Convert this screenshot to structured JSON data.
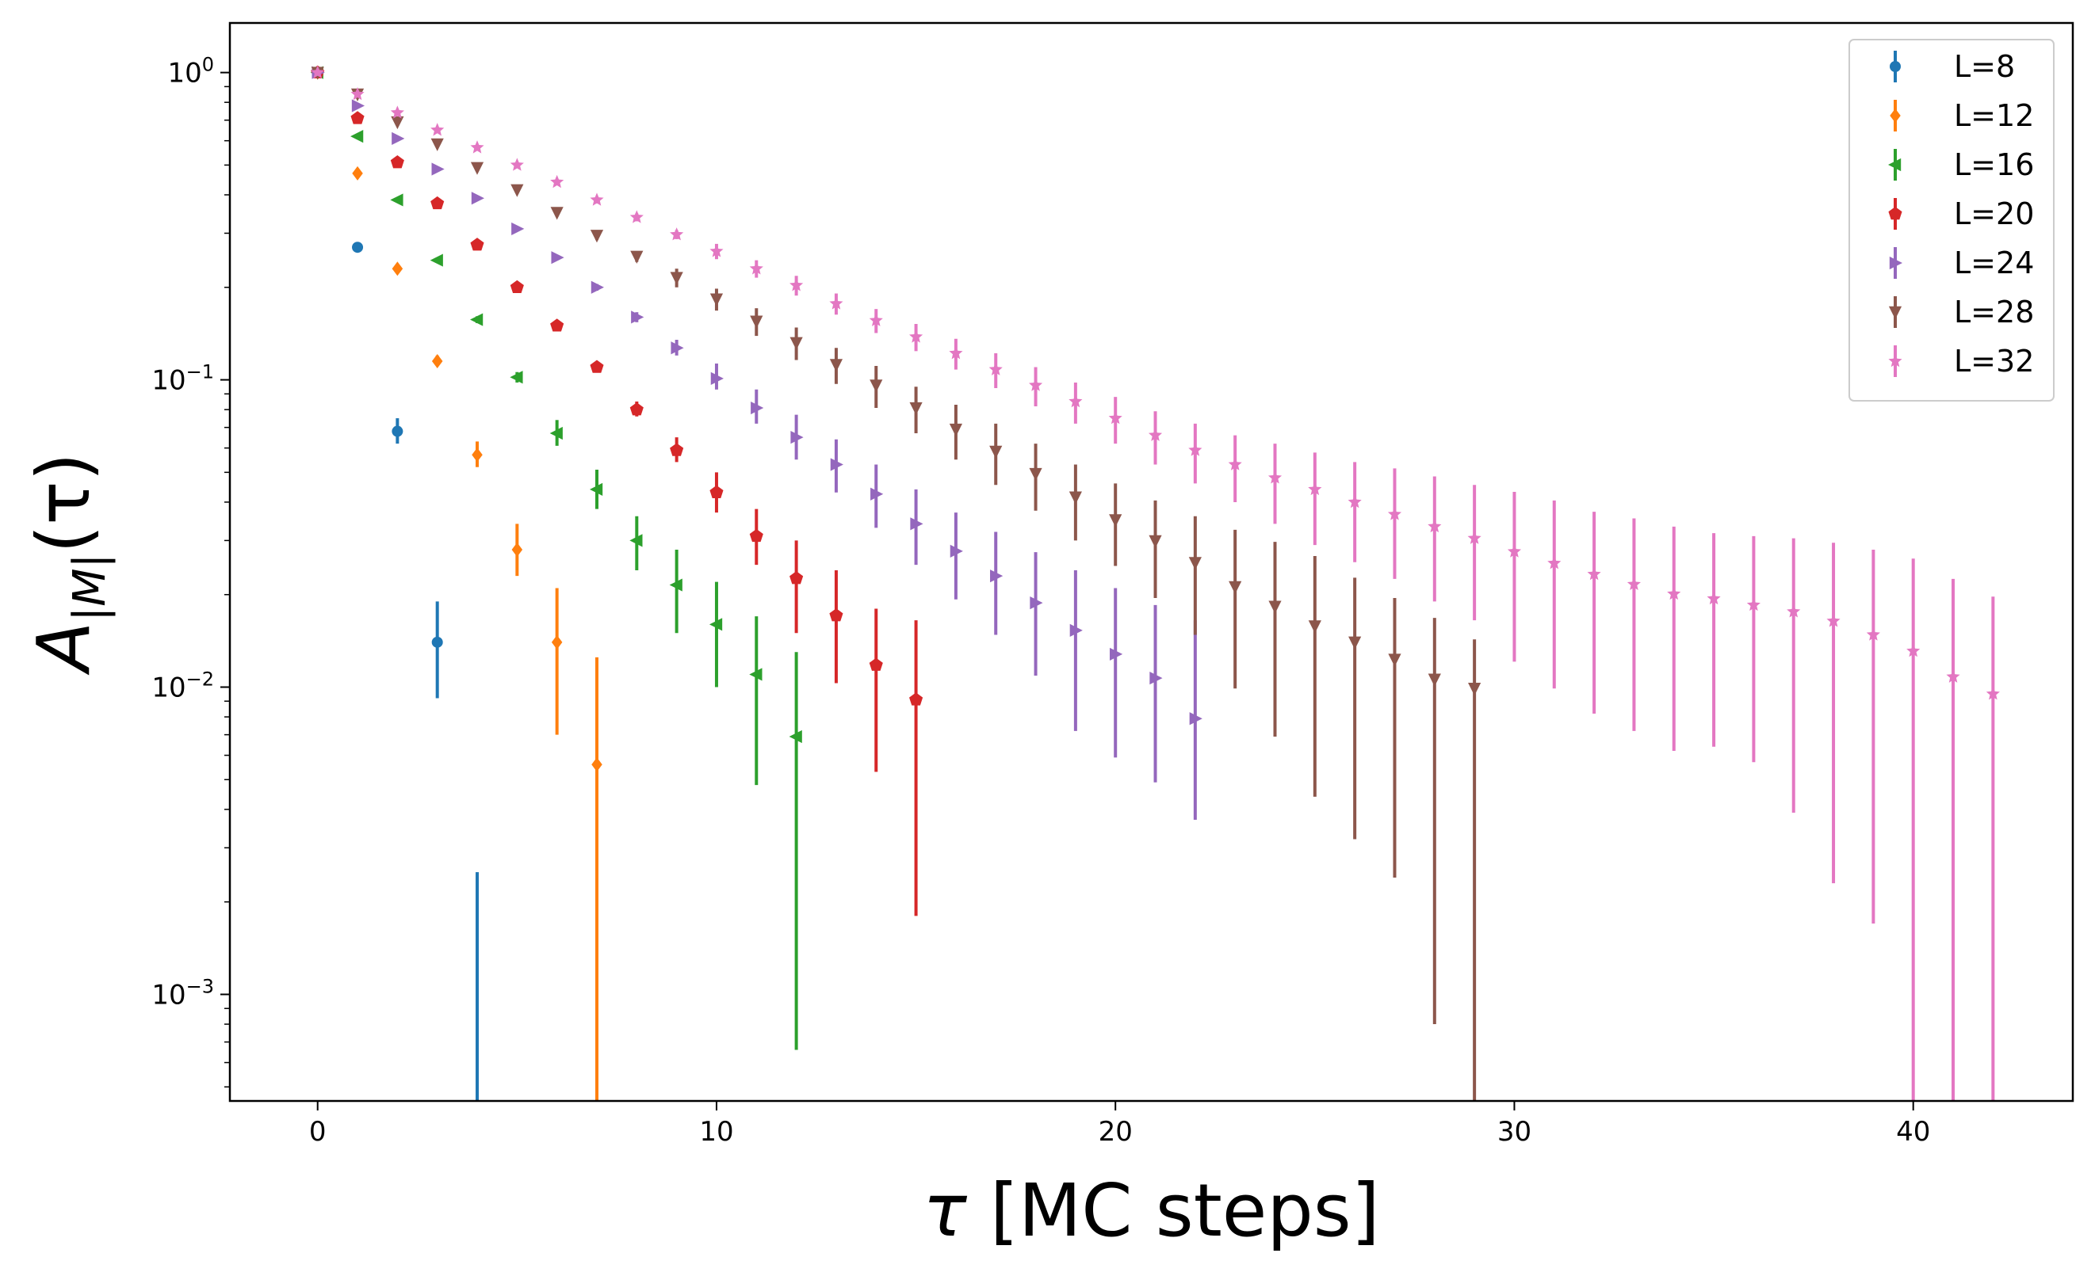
{
  "chart_data": {
    "type": "scatter",
    "title": "",
    "xlabel_parts": {
      "symbol": "τ",
      "unit": " [MC steps]"
    },
    "ylabel_parts": {
      "base": "A",
      "sub": "|M|",
      "arg": "(τ)"
    },
    "xlim": [
      -2.2,
      44
    ],
    "ylim": [
      0.00045,
      1.45
    ],
    "yscale": "log",
    "xticks": [
      0,
      10,
      20,
      30,
      40
    ],
    "xtick_labels": [
      "0",
      "10",
      "20",
      "30",
      "40"
    ],
    "yticks": [
      1,
      0.1,
      0.01,
      0.001
    ],
    "ytick_labels": [
      {
        "base": "10",
        "exp": "0"
      },
      {
        "base": "10",
        "exp": "−1"
      },
      {
        "base": "10",
        "exp": "−2"
      },
      {
        "base": "10",
        "exp": "−3"
      }
    ],
    "grid": false,
    "legend_position": "top-right",
    "series": [
      {
        "name": "L=8",
        "color": "#1f77b4",
        "marker": "circle",
        "x": [
          0,
          1,
          2,
          3,
          4
        ],
        "y": [
          1.0,
          0.27,
          0.068,
          0.014,
          null
        ],
        "yerr_low": [
          1.0,
          0.27,
          0.062,
          0.0092,
          0.0001
        ],
        "yerr_high": [
          1.0,
          0.27,
          0.075,
          0.019,
          0.0025
        ]
      },
      {
        "name": "L=12",
        "color": "#ff7f0e",
        "marker": "diamond",
        "x": [
          0,
          1,
          2,
          3,
          4,
          5,
          6,
          7
        ],
        "y": [
          1.0,
          0.47,
          0.23,
          0.115,
          0.057,
          0.028,
          0.014,
          0.0056
        ],
        "yerr_low": [
          1.0,
          0.46,
          0.225,
          0.111,
          0.052,
          0.023,
          0.007,
          0.0001
        ],
        "yerr_high": [
          1.0,
          0.48,
          0.237,
          0.12,
          0.063,
          0.034,
          0.021,
          0.0125
        ]
      },
      {
        "name": "L=16",
        "color": "#2ca02c",
        "marker": "triangle-left",
        "x": [
          0,
          1,
          2,
          3,
          4,
          5,
          6,
          7,
          8,
          9,
          10,
          11,
          12
        ],
        "y": [
          1.0,
          0.62,
          0.385,
          0.245,
          0.157,
          0.102,
          0.067,
          0.044,
          0.03,
          0.0215,
          0.016,
          0.011,
          0.0069
        ],
        "yerr_low": [
          1.0,
          0.61,
          0.38,
          0.241,
          0.153,
          0.098,
          0.061,
          0.038,
          0.024,
          0.015,
          0.01,
          0.0048,
          0.00066
        ],
        "yerr_high": [
          1.0,
          0.63,
          0.39,
          0.25,
          0.161,
          0.106,
          0.074,
          0.051,
          0.036,
          0.028,
          0.022,
          0.017,
          0.013
        ]
      },
      {
        "name": "L=20",
        "color": "#d62728",
        "marker": "pentagon",
        "x": [
          0,
          1,
          2,
          3,
          4,
          5,
          6,
          7,
          8,
          9,
          10,
          11,
          12,
          13,
          14,
          15
        ],
        "y": [
          1.0,
          0.71,
          0.51,
          0.375,
          0.275,
          0.2,
          0.15,
          0.11,
          0.08,
          0.059,
          0.043,
          0.031,
          0.0226,
          0.0171,
          0.0118,
          0.0091
        ],
        "yerr_low": [
          1.0,
          0.7,
          0.505,
          0.37,
          0.27,
          0.196,
          0.146,
          0.106,
          0.076,
          0.054,
          0.037,
          0.025,
          0.015,
          0.0103,
          0.0053,
          0.0018
        ],
        "yerr_high": [
          1.0,
          0.72,
          0.515,
          0.38,
          0.28,
          0.205,
          0.155,
          0.115,
          0.085,
          0.065,
          0.05,
          0.038,
          0.03,
          0.024,
          0.018,
          0.0165
        ]
      },
      {
        "name": "L=24",
        "color": "#9467bd",
        "marker": "triangle-right",
        "x": [
          0,
          1,
          2,
          3,
          4,
          5,
          6,
          7,
          8,
          9,
          10,
          11,
          12,
          13,
          14,
          15,
          16,
          17,
          18,
          19,
          20,
          21,
          22
        ],
        "y": [
          1.0,
          0.78,
          0.61,
          0.485,
          0.39,
          0.31,
          0.25,
          0.2,
          0.16,
          0.127,
          0.101,
          0.081,
          0.065,
          0.053,
          0.0425,
          0.034,
          0.0277,
          0.023,
          0.0188,
          0.0153,
          0.0128,
          0.0107,
          0.0079
        ],
        "yerr_low": [
          1.0,
          0.77,
          0.6,
          0.48,
          0.385,
          0.305,
          0.245,
          0.195,
          0.154,
          0.12,
          0.093,
          0.072,
          0.055,
          0.043,
          0.033,
          0.025,
          0.0193,
          0.0148,
          0.0109,
          0.0072,
          0.0059,
          0.0049,
          0.0037
        ],
        "yerr_high": [
          1.0,
          0.79,
          0.62,
          0.49,
          0.395,
          0.315,
          0.255,
          0.205,
          0.166,
          0.135,
          0.113,
          0.093,
          0.077,
          0.064,
          0.053,
          0.044,
          0.037,
          0.032,
          0.0275,
          0.024,
          0.021,
          0.0185,
          0.0165
        ]
      },
      {
        "name": "L=28",
        "color": "#8c564b",
        "marker": "triangle-down",
        "x": [
          0,
          1,
          2,
          3,
          4,
          5,
          6,
          7,
          8,
          9,
          10,
          11,
          12,
          13,
          14,
          15,
          16,
          17,
          18,
          19,
          20,
          21,
          22,
          23,
          24,
          25,
          26,
          27,
          28,
          29
        ],
        "y": [
          1.0,
          0.85,
          0.69,
          0.585,
          0.49,
          0.415,
          0.35,
          0.295,
          0.252,
          0.215,
          0.183,
          0.155,
          0.132,
          0.112,
          0.096,
          0.081,
          0.069,
          0.0585,
          0.0495,
          0.0415,
          0.035,
          0.0299,
          0.0254,
          0.0212,
          0.0183,
          0.0158,
          0.014,
          0.0123,
          0.0106,
          0.0099
        ],
        "yerr_low": [
          1.0,
          0.84,
          0.68,
          0.575,
          0.48,
          0.405,
          0.34,
          0.285,
          0.242,
          0.2,
          0.168,
          0.139,
          0.116,
          0.097,
          0.081,
          0.067,
          0.055,
          0.0455,
          0.0375,
          0.03,
          0.0248,
          0.0195,
          0.0148,
          0.0099,
          0.0069,
          0.0044,
          0.0032,
          0.0024,
          0.0008,
          0.0001
        ],
        "yerr_high": [
          1.0,
          0.86,
          0.7,
          0.595,
          0.5,
          0.425,
          0.36,
          0.305,
          0.262,
          0.23,
          0.198,
          0.171,
          0.148,
          0.127,
          0.111,
          0.095,
          0.083,
          0.072,
          0.062,
          0.053,
          0.046,
          0.0405,
          0.036,
          0.0325,
          0.0297,
          0.0267,
          0.0227,
          0.0195,
          0.0168,
          0.0143
        ]
      },
      {
        "name": "L=32",
        "color": "#e377c2",
        "marker": "star",
        "x": [
          0,
          1,
          2,
          3,
          4,
          5,
          6,
          7,
          8,
          9,
          10,
          11,
          12,
          13,
          14,
          15,
          16,
          17,
          18,
          19,
          20,
          21,
          22,
          23,
          24,
          25,
          26,
          27,
          28,
          29,
          30,
          31,
          32,
          33,
          34,
          35,
          36,
          37,
          38,
          39,
          40,
          41,
          42
        ],
        "y": [
          1.0,
          0.85,
          0.74,
          0.65,
          0.57,
          0.5,
          0.44,
          0.385,
          0.338,
          0.297,
          0.262,
          0.23,
          0.203,
          0.177,
          0.156,
          0.138,
          0.122,
          0.108,
          0.096,
          0.085,
          0.075,
          0.066,
          0.059,
          0.053,
          0.048,
          0.044,
          0.04,
          0.0365,
          0.0333,
          0.0305,
          0.0276,
          0.0253,
          0.0233,
          0.0216,
          0.0201,
          0.0194,
          0.0185,
          0.0176,
          0.0164,
          0.0148,
          0.0131,
          0.0108,
          0.0095
        ],
        "yerr_low": [
          1.0,
          0.84,
          0.73,
          0.64,
          0.56,
          0.49,
          0.43,
          0.375,
          0.328,
          0.287,
          0.247,
          0.215,
          0.188,
          0.163,
          0.142,
          0.124,
          0.108,
          0.094,
          0.082,
          0.072,
          0.062,
          0.053,
          0.046,
          0.04,
          0.034,
          0.029,
          0.0255,
          0.0225,
          0.019,
          0.0165,
          0.0121,
          0.0099,
          0.0082,
          0.0072,
          0.0062,
          0.0064,
          0.0057,
          0.0039,
          0.0023,
          0.0017,
          0.0001,
          0.0001,
          0.0001
        ],
        "yerr_high": [
          1.0,
          0.86,
          0.75,
          0.66,
          0.58,
          0.51,
          0.45,
          0.395,
          0.348,
          0.307,
          0.277,
          0.245,
          0.218,
          0.191,
          0.17,
          0.152,
          0.136,
          0.122,
          0.11,
          0.098,
          0.088,
          0.079,
          0.072,
          0.066,
          0.062,
          0.058,
          0.054,
          0.0515,
          0.0485,
          0.0455,
          0.0432,
          0.0405,
          0.0372,
          0.0354,
          0.0333,
          0.0317,
          0.031,
          0.0305,
          0.0295,
          0.028,
          0.0262,
          0.0225,
          0.0197
        ]
      }
    ]
  }
}
